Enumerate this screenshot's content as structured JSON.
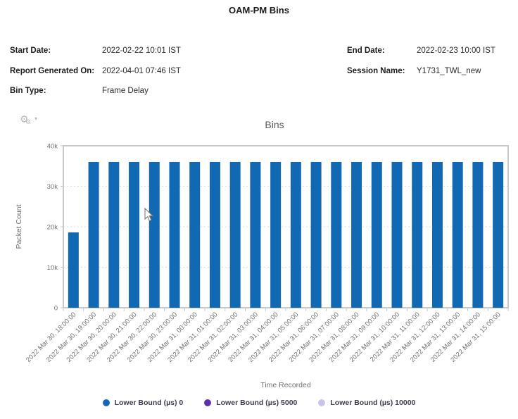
{
  "page": {
    "title": "OAM-PM Bins"
  },
  "meta": {
    "start_date": {
      "label": "Start Date:",
      "value": "2022-02-22 10:01 IST"
    },
    "report_generated_on": {
      "label": "Report Generated On:",
      "value": "2022-04-01 07:46 IST"
    },
    "bin_type": {
      "label": "Bin Type:",
      "value": "Frame Delay"
    },
    "end_date": {
      "label": "End Date:",
      "value": "2022-02-23 10:00 IST"
    },
    "session_name": {
      "label": "Session Name:",
      "value": "Y1731_TWL_new"
    }
  },
  "chart": {
    "title": "Bins",
    "menu_icons": {
      "gear": "⚙",
      "gear_small": "⚙",
      "caret_down": "▾"
    }
  },
  "chart_data": {
    "type": "bar",
    "title": "Bins",
    "xlabel": "Time Recorded",
    "ylabel": "Packet Count",
    "ylim": [
      0,
      40000
    ],
    "yticks": [
      0,
      10000,
      20000,
      30000,
      40000
    ],
    "ytick_labels": [
      "0",
      "10k",
      "20k",
      "30k",
      "40k"
    ],
    "grid": "horizontal-dashed",
    "legend_position": "bottom",
    "bar_color": "#1269B3",
    "categories": [
      "2022 Mar 30, 18:00:00",
      "2022 Mar 30, 19:00:00",
      "2022 Mar 30, 20:00:00",
      "2022 Mar 30, 21:00:00",
      "2022 Mar 30, 22:00:00",
      "2022 Mar 30, 23:00:00",
      "2022 Mar 31, 00:00:00",
      "2022 Mar 31, 01:00:00",
      "2022 Mar 31, 02:00:00",
      "2022 Mar 31, 03:00:00",
      "2022 Mar 31, 04:00:00",
      "2022 Mar 31, 05:00:00",
      "2022 Mar 31, 06:00:00",
      "2022 Mar 31, 07:00:00",
      "2022 Mar 31, 08:00:00",
      "2022 Mar 31, 09:00:00",
      "2022 Mar 31, 10:00:00",
      "2022 Mar 31, 11:00:00",
      "2022 Mar 31, 12:00:00",
      "2022 Mar 31, 13:00:00",
      "2022 Mar 31, 14:00:00",
      "2022 Mar 31, 15:00:00"
    ],
    "series": [
      {
        "name": "Lower Bound (µs) 0",
        "color": "#1269B3",
        "values": [
          18600,
          36000,
          36000,
          36000,
          36000,
          36000,
          36000,
          36000,
          36000,
          36000,
          36000,
          36000,
          36000,
          36000,
          36000,
          36000,
          36000,
          36000,
          36000,
          36000,
          36000,
          36000
        ]
      },
      {
        "name": "Lower Bound (µs) 5000",
        "color": "#5B32A8",
        "values": [
          0,
          0,
          0,
          0,
          0,
          0,
          0,
          0,
          0,
          0,
          0,
          0,
          0,
          0,
          0,
          0,
          0,
          0,
          0,
          0,
          0,
          0
        ]
      },
      {
        "name": "Lower Bound (µs) 10000",
        "color": "#C9C3EB",
        "values": [
          0,
          0,
          0,
          0,
          0,
          0,
          0,
          0,
          0,
          0,
          0,
          0,
          0,
          0,
          0,
          0,
          0,
          0,
          0,
          0,
          0,
          0
        ]
      }
    ]
  }
}
